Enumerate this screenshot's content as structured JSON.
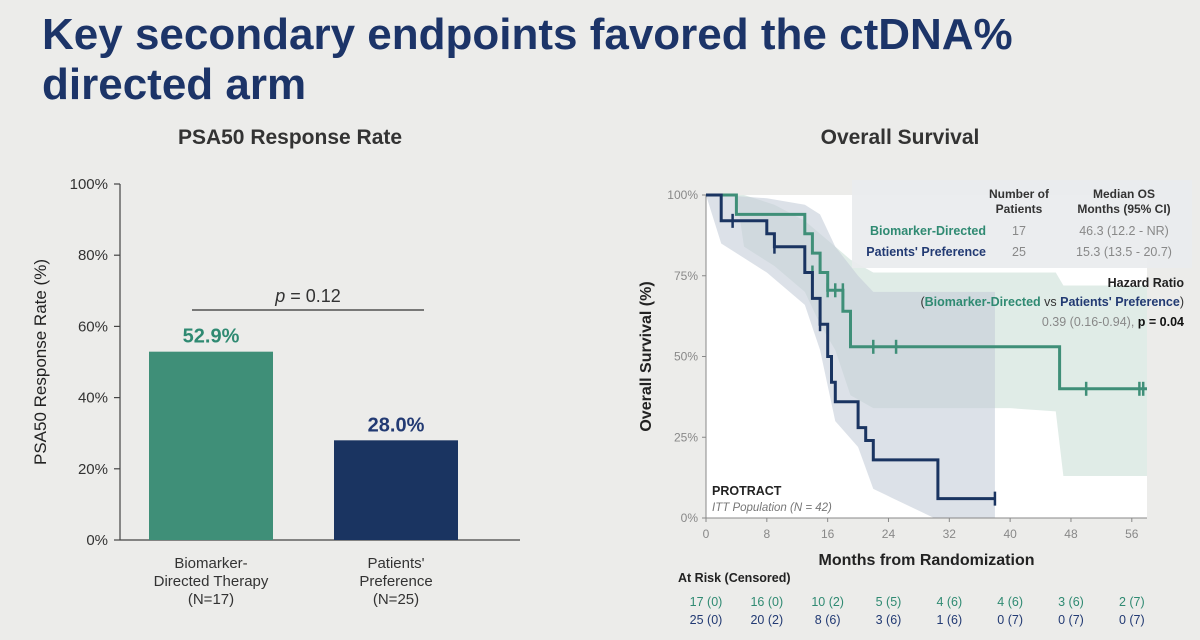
{
  "slide": {
    "title": "Key secondary endpoints favored the ctDNA% directed arm"
  },
  "colors": {
    "title": "#1c3468",
    "teal": "#3f8f78",
    "navy": "#1a3461",
    "teal_text": "#2f8a72",
    "navy_text": "#223a73"
  },
  "chart_data": [
    {
      "type": "bar",
      "title": "PSA50 Response Rate",
      "ylabel": "PSA50 Response Rate (%)",
      "ylim": [
        0,
        100
      ],
      "yticks": [
        "0%",
        "20%",
        "40%",
        "60%",
        "80%",
        "100%"
      ],
      "categories": [
        {
          "lines": [
            "Biomarker-",
            "Directed Therapy",
            "(N=17)"
          ]
        },
        {
          "lines": [
            "Patients'",
            "Preference",
            "(N=25)"
          ]
        }
      ],
      "values": [
        52.9,
        28.0
      ],
      "value_labels": [
        "52.9%",
        "28.0%"
      ],
      "annotation": {
        "text": "p = 0.12",
        "italic_part": "p",
        "rest": " = 0.12"
      }
    },
    {
      "type": "line",
      "subtype": "kaplan-meier",
      "title": "Overall Survival",
      "xlabel": "Months from Randomization",
      "ylabel": "Overall Survival (%)",
      "xlim": [
        0,
        58
      ],
      "ylim": [
        0,
        100
      ],
      "xticks": [
        "0",
        "8",
        "16",
        "24",
        "32",
        "40",
        "48",
        "56"
      ],
      "yticks": [
        "0%",
        "25%",
        "50%",
        "75%",
        "100%"
      ],
      "series": [
        {
          "name": "Biomarker-Directed",
          "steps": [
            [
              0,
              100
            ],
            [
              4,
              100
            ],
            [
              4,
              94
            ],
            [
              13,
              94
            ],
            [
              13,
              88
            ],
            [
              14,
              88
            ],
            [
              14,
              82
            ],
            [
              15,
              82
            ],
            [
              15,
              76
            ],
            [
              16,
              76
            ],
            [
              16,
              70.5
            ],
            [
              18,
              70.5
            ],
            [
              18,
              64
            ],
            [
              19,
              64
            ],
            [
              19,
              53
            ],
            [
              46.5,
              53
            ],
            [
              46.5,
              40
            ],
            [
              58,
              40
            ]
          ],
          "censors": [
            [
              14,
              76
            ],
            [
              16,
              70.5
            ],
            [
              17,
              70.5
            ],
            [
              18,
              70.5
            ],
            [
              22,
              53
            ],
            [
              25,
              53
            ],
            [
              50,
              40
            ],
            [
              57,
              40
            ],
            [
              57.5,
              40
            ]
          ],
          "band": [
            [
              0,
              100,
              100
            ],
            [
              4,
              100,
              100
            ],
            [
              5,
              100,
              84
            ],
            [
              9,
              97,
              78
            ],
            [
              13,
              92,
              70
            ],
            [
              15,
              88,
              60
            ],
            [
              17,
              84,
              52
            ],
            [
              19,
              80,
              38
            ],
            [
              22,
              76,
              34
            ],
            [
              30,
              76,
              34
            ],
            [
              40,
              76,
              34
            ],
            [
              46,
              76,
              33
            ],
            [
              47,
              72,
              13
            ],
            [
              58,
              72,
              13
            ]
          ]
        },
        {
          "name": "Patients' Preference",
          "steps": [
            [
              0,
              100
            ],
            [
              2,
              100
            ],
            [
              2,
              92
            ],
            [
              8,
              92
            ],
            [
              8,
              88
            ],
            [
              9,
              88
            ],
            [
              9,
              84
            ],
            [
              13,
              84
            ],
            [
              13,
              76
            ],
            [
              14,
              76
            ],
            [
              14,
              68
            ],
            [
              15,
              68
            ],
            [
              15,
              60
            ],
            [
              16,
              60
            ],
            [
              16,
              50
            ],
            [
              16.5,
              50
            ],
            [
              16.5,
              42
            ],
            [
              17,
              42
            ],
            [
              17,
              36
            ],
            [
              20,
              36
            ],
            [
              20,
              28
            ],
            [
              21,
              28
            ],
            [
              21,
              24
            ],
            [
              22,
              24
            ],
            [
              22,
              18
            ],
            [
              30.5,
              18
            ],
            [
              30.5,
              6
            ],
            [
              38,
              6
            ]
          ],
          "censors": [
            [
              3.5,
              92
            ],
            [
              9,
              84
            ],
            [
              15,
              60
            ],
            [
              38,
              6
            ]
          ],
          "band": [
            [
              0,
              100,
              100
            ],
            [
              2,
              100,
              85
            ],
            [
              8,
              99,
              76
            ],
            [
              13,
              97,
              66
            ],
            [
              15,
              94,
              52
            ],
            [
              17,
              84,
              30
            ],
            [
              20,
              75,
              22
            ],
            [
              22,
              70,
              9
            ],
            [
              30,
              70,
              0
            ],
            [
              38,
              70,
              0
            ]
          ]
        }
      ],
      "stats_table": {
        "header_patients": [
          "Number of",
          "Patients"
        ],
        "header_median": [
          "Median OS",
          "Months (95% CI)"
        ],
        "rows": [
          {
            "label": "Biomarker-Directed",
            "n": "17",
            "median": "46.3 (12.2 - NR)"
          },
          {
            "label": "Patients' Preference",
            "n": "25",
            "median": "15.3 (13.5 - 20.7)"
          }
        ]
      },
      "hazard_ratio": {
        "title": "Hazard Ratio",
        "open": "(",
        "arm1": "Biomarker-Directed",
        "vs": " vs ",
        "arm2": "Patients' Preference",
        "close": ")",
        "value": "0.39 (0.16-0.94), ",
        "p": "p = 0.04"
      },
      "study": {
        "name": "PROTRACT",
        "population": "ITT Population (N = 42)"
      },
      "at_risk": {
        "title": "At Risk (Censored)",
        "rows": [
          [
            "17 (0)",
            "16 (0)",
            "10 (2)",
            "5 (5)",
            "4 (6)",
            "4 (6)",
            "3 (6)",
            "2 (7)"
          ],
          [
            "25 (0)",
            "20 (2)",
            "8 (6)",
            "3 (6)",
            "1 (6)",
            "0 (7)",
            "0 (7)",
            "0 (7)"
          ]
        ]
      }
    }
  ]
}
